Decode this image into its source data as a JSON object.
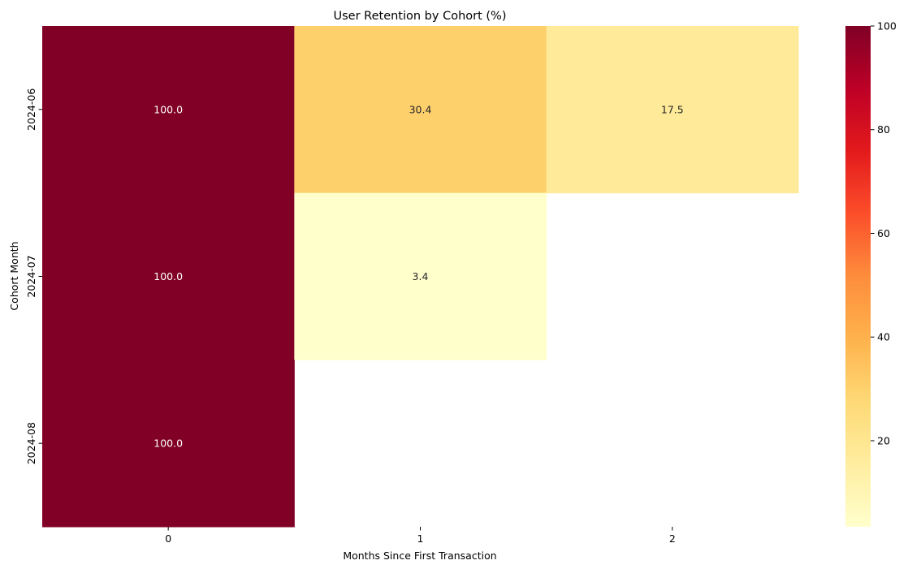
{
  "chart_data": {
    "type": "heatmap",
    "title": "User Retention by Cohort (%)",
    "xlabel": "Months Since First Transaction",
    "ylabel": "Cohort Month",
    "x_categories": [
      "0",
      "1",
      "2"
    ],
    "y_categories": [
      "2024-06",
      "2024-07",
      "2024-08"
    ],
    "values": [
      [
        100.0,
        30.4,
        17.5
      ],
      [
        100.0,
        3.4,
        null
      ],
      [
        100.0,
        null,
        null
      ]
    ],
    "annotations": [
      [
        "100.0",
        "30.4",
        "17.5"
      ],
      [
        "100.0",
        "3.4",
        ""
      ],
      [
        "100.0",
        "",
        ""
      ]
    ],
    "colorbar": {
      "min": 3.4,
      "max": 100,
      "ticks": [
        20,
        40,
        60,
        80,
        100
      ],
      "tick_labels": [
        "20",
        "40",
        "60",
        "80",
        "100"
      ],
      "colormap": "YlOrRd"
    },
    "grid": false,
    "colors": {
      "missing": "#ffffff",
      "text_dark": "#262626",
      "text_light": "#ffffff"
    }
  }
}
